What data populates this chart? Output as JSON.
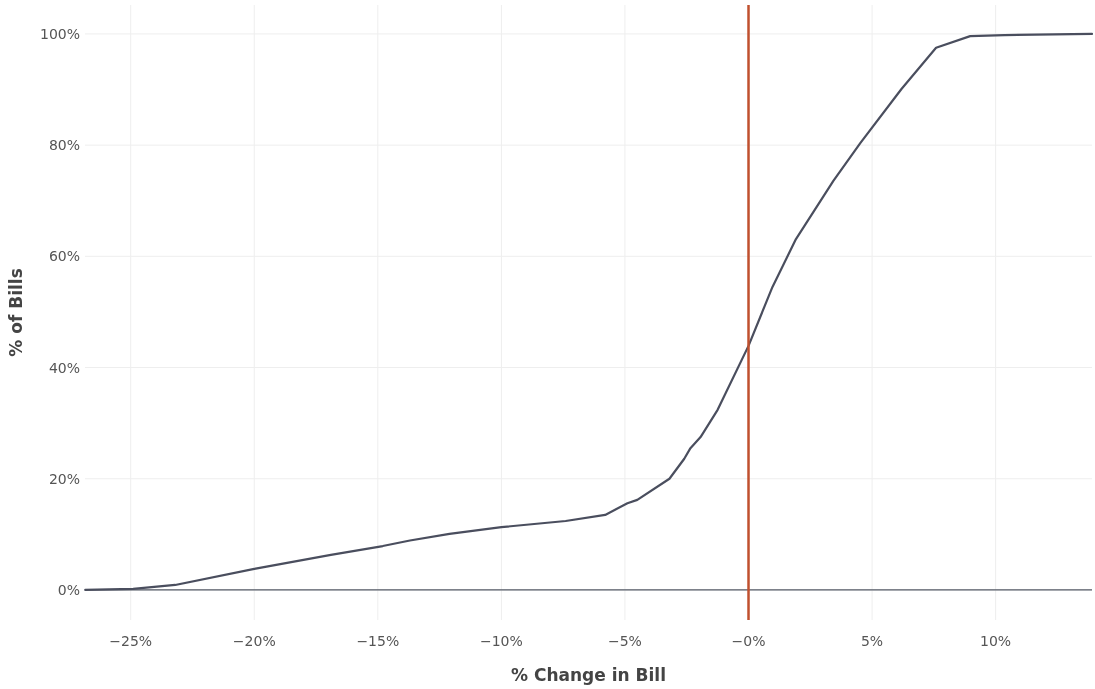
{
  "chart_data": {
    "type": "line",
    "xlabel": "% Change in Bill",
    "ylabel": "% of Bills",
    "x": [
      -26.84,
      -24.9,
      -23.2,
      -20.0,
      -16.9,
      -14.8,
      -13.7,
      -12.1,
      -10.0,
      -7.4,
      -5.8,
      -4.9,
      -4.5,
      -3.2,
      -2.6,
      -2.35,
      -1.94,
      -1.25,
      0,
      0.97,
      1.92,
      3.44,
      4.53,
      6.19,
      7.59,
      8.97,
      10.35,
      13.9
    ],
    "series": [
      {
        "color": "#4a4e5e",
        "values": [
          0,
          0.2,
          0.9,
          3.8,
          6.3,
          7.9,
          8.9,
          10.1,
          11.3,
          12.4,
          13.5,
          15.6,
          16.2,
          20,
          23.6,
          25.5,
          27.5,
          32.4,
          43.9,
          54.5,
          63.1,
          73.6,
          80.4,
          90.1,
          97.5,
          99.6,
          99.8,
          100
        ]
      }
    ],
    "xlim": [
      -26.85,
      13.9
    ],
    "ylim": [
      -5.4,
      105.2
    ],
    "xticks": [
      {
        "value": -25,
        "label": "−25%"
      },
      {
        "value": -20,
        "label": "−20%"
      },
      {
        "value": -15,
        "label": "−15%"
      },
      {
        "value": -10,
        "label": "−10%"
      },
      {
        "value": -5,
        "label": "−5%"
      },
      {
        "value": 0,
        "label": "−0%"
      },
      {
        "value": 5,
        "label": "5%"
      },
      {
        "value": 10,
        "label": "10%"
      }
    ],
    "yticks": [
      {
        "value": 0,
        "label": "0%"
      },
      {
        "value": 20,
        "label": "20%"
      },
      {
        "value": 40,
        "label": "40%"
      },
      {
        "value": 60,
        "label": "60%"
      },
      {
        "value": 80,
        "label": "80%"
      },
      {
        "value": 100,
        "label": "100%"
      }
    ],
    "grid": true,
    "marker": "none",
    "line_style": "solid",
    "ref_lines": [
      {
        "axis": "x",
        "value": 0,
        "color": "#c0502e"
      }
    ]
  }
}
